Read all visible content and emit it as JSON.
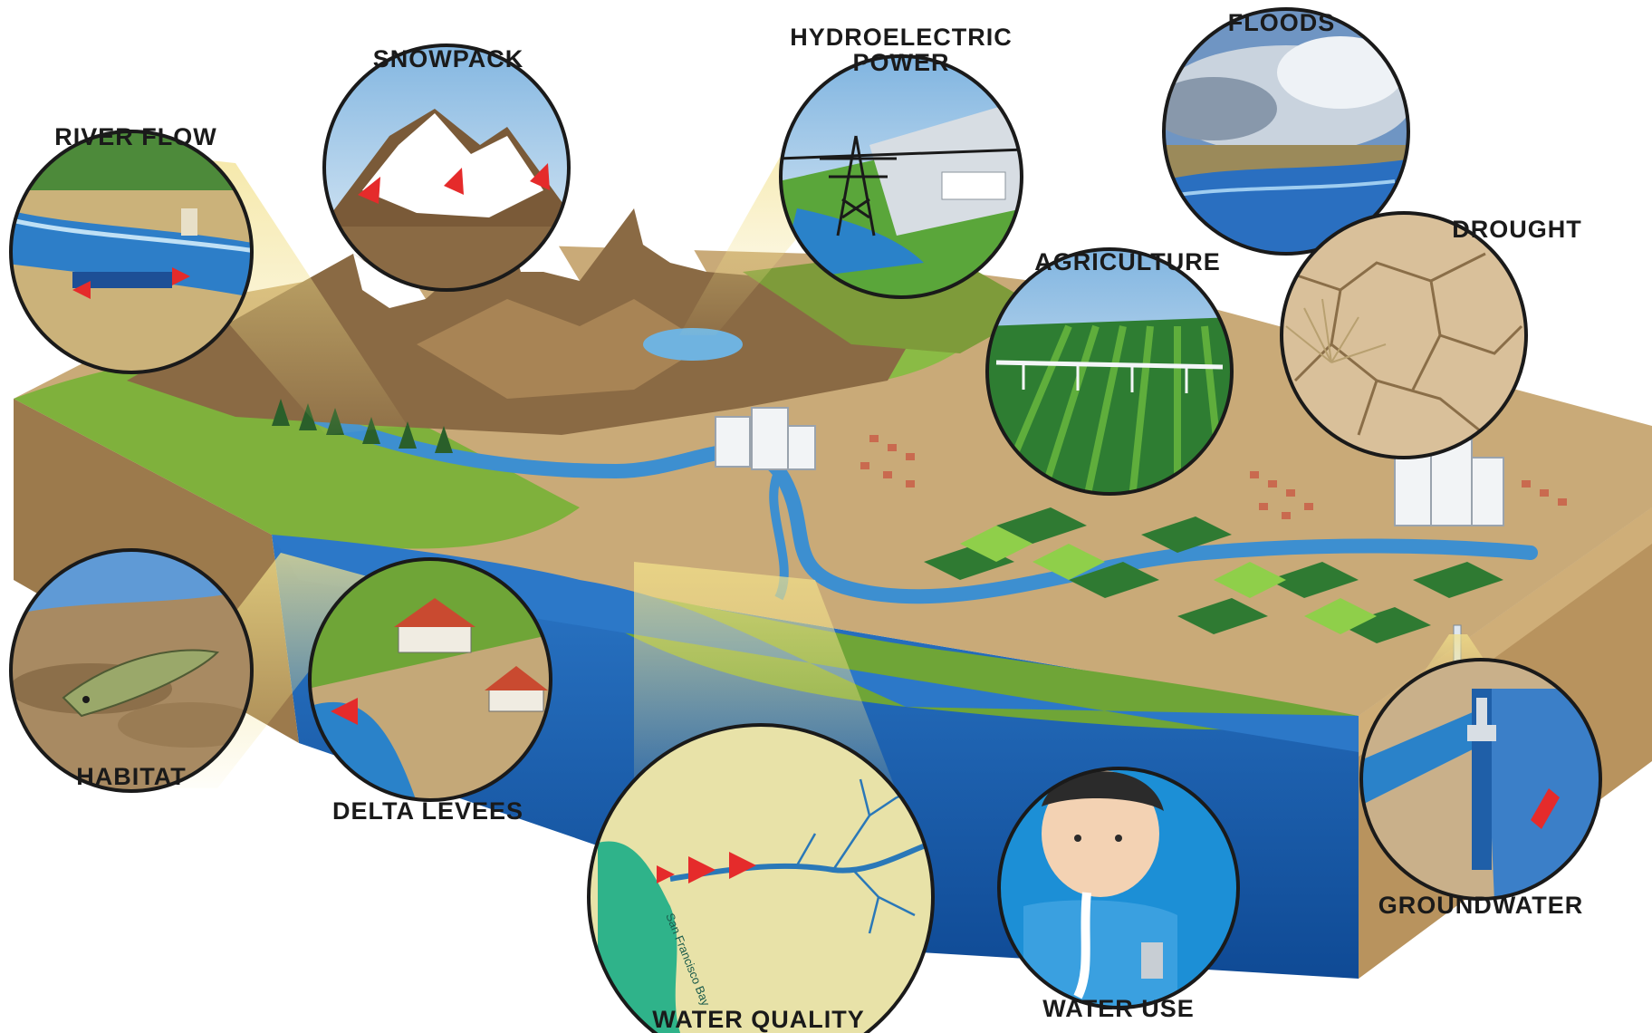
{
  "labels": {
    "river_flow": "RIVER FLOW",
    "snowpack": "SNOWPACK",
    "hydroelectric_line1": "HYDROELECTRIC",
    "hydroelectric_line2": "POWER",
    "floods": "FLOODS",
    "drought": "DROUGHT",
    "agriculture": "AGRICULTURE",
    "habitat": "HABITAT",
    "delta_levees": "DELTA LEVEES",
    "water_quality": "WATER QUALITY",
    "water_use": "WATER USE",
    "groundwater": "GROUNDWATER"
  },
  "inset_text": {
    "bay": "San Francisco Bay"
  },
  "colors": {
    "water": "#1b5fb0",
    "river": "#3d8fd0",
    "grass": "#7fb13c",
    "field_dark": "#2f7a32",
    "mountain": "#8a6a44",
    "snow": "#ffffff",
    "soil": "#c8a878",
    "arrow": "#e52b2b"
  }
}
